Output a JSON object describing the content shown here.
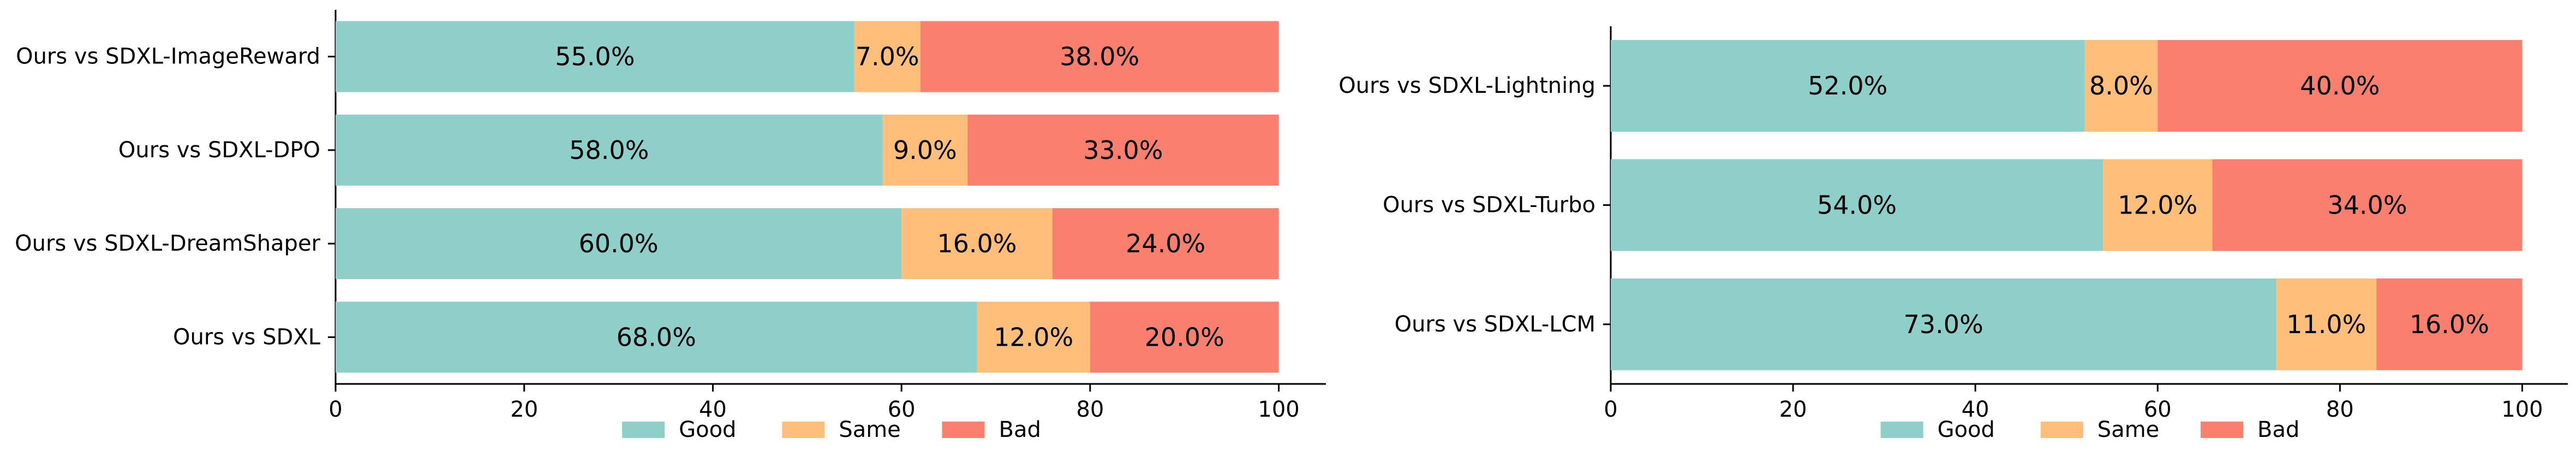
{
  "legend_labels": [
    "Good",
    "Same",
    "Bad"
  ],
  "colors": {
    "Good": "#8ECFC9",
    "Same": "#FFBE7A",
    "Bad": "#FA7F6F"
  },
  "chart_data": [
    {
      "type": "bar",
      "orientation": "horizontal",
      "stacked": true,
      "categories": [
        "Ours vs SDXL-ImageReward",
        "Ours vs SDXL-DPO",
        "Ours vs SDXL-DreamShaper",
        "Ours vs SDXL"
      ],
      "series": [
        {
          "name": "Good",
          "values": [
            55.0,
            58.0,
            60.0,
            68.0
          ]
        },
        {
          "name": "Same",
          "values": [
            7.0,
            9.0,
            16.0,
            12.0
          ]
        },
        {
          "name": "Bad",
          "values": [
            38.0,
            33.0,
            24.0,
            20.0
          ]
        }
      ],
      "xlim": [
        0,
        105
      ],
      "xticks": [
        0,
        20,
        40,
        60,
        80,
        100
      ],
      "legend": "bottom-center",
      "grid": false
    },
    {
      "type": "bar",
      "orientation": "horizontal",
      "stacked": true,
      "categories": [
        "Ours vs SDXL-Lightning",
        "Ours vs SDXL-Turbo",
        "Ours vs SDXL-LCM"
      ],
      "series": [
        {
          "name": "Good",
          "values": [
            52.0,
            54.0,
            73.0
          ]
        },
        {
          "name": "Same",
          "values": [
            8.0,
            12.0,
            11.0
          ]
        },
        {
          "name": "Bad",
          "values": [
            40.0,
            34.0,
            16.0
          ]
        }
      ],
      "xlim": [
        0,
        105
      ],
      "xticks": [
        0,
        20,
        40,
        60,
        80,
        100
      ],
      "legend": "bottom-center",
      "grid": false
    }
  ]
}
